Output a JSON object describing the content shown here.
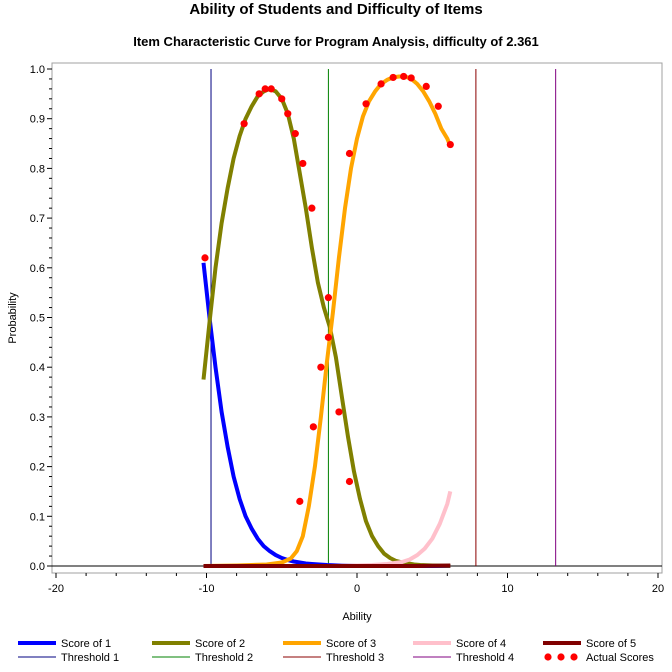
{
  "chart_data": {
    "type": "line",
    "title": "Ability of Students and Difficulty of Items",
    "subtitle": "Item Characteristic Curve for Program Analysis, difficulty of 2.361",
    "xlabel": "Ability",
    "ylabel": "Probability",
    "xlim": [
      -20,
      20
    ],
    "ylim": [
      0,
      1
    ],
    "xticks": [
      -20,
      -10,
      0,
      10,
      20
    ],
    "yticks": [
      0.0,
      0.1,
      0.2,
      0.3,
      0.4,
      0.5,
      0.6,
      0.7,
      0.8,
      0.9,
      1.0
    ],
    "ytick_labels": [
      "0.0",
      "0.1",
      "0.2",
      "0.3",
      "0.4",
      "0.5",
      "0.6",
      "0.7",
      "0.8",
      "0.9",
      "1.0"
    ],
    "grid": false,
    "legend_position": "bottom",
    "series": [
      {
        "name": "Score of 1",
        "color": "#0000ff",
        "x": [
          -10.2,
          -9.8,
          -9.4,
          -9.0,
          -8.6,
          -8.2,
          -7.8,
          -7.4,
          -7.0,
          -6.6,
          -6.2,
          -5.8,
          -5.4,
          -5.0,
          -4.6,
          -4.2,
          -3.8,
          -3.4,
          -3.0,
          -2.0,
          -1.0,
          0.0,
          2.0,
          4.0,
          6.2
        ],
        "y": [
          0.61,
          0.5,
          0.4,
          0.31,
          0.24,
          0.18,
          0.135,
          0.1,
          0.075,
          0.055,
          0.04,
          0.03,
          0.022,
          0.016,
          0.012,
          0.009,
          0.007,
          0.005,
          0.004,
          0.002,
          0.001,
          0.0005,
          0.0002,
          0.0001,
          0.0
        ]
      },
      {
        "name": "Score of 2",
        "color": "#808000",
        "x": [
          -10.2,
          -9.8,
          -9.4,
          -9.0,
          -8.6,
          -8.2,
          -7.8,
          -7.4,
          -7.0,
          -6.6,
          -6.2,
          -5.8,
          -5.4,
          -5.0,
          -4.6,
          -4.2,
          -3.8,
          -3.4,
          -3.0,
          -2.6,
          -2.2,
          -1.8,
          -1.4,
          -1.0,
          -0.6,
          -0.2,
          0.2,
          0.6,
          1.0,
          1.4,
          1.8,
          2.2,
          2.6,
          3.0,
          3.4,
          3.8,
          4.2,
          4.6,
          5.0,
          5.4,
          5.8,
          6.2
        ],
        "y": [
          0.375,
          0.49,
          0.6,
          0.69,
          0.76,
          0.82,
          0.865,
          0.9,
          0.925,
          0.945,
          0.955,
          0.96,
          0.955,
          0.94,
          0.91,
          0.86,
          0.79,
          0.72,
          0.64,
          0.57,
          0.52,
          0.48,
          0.42,
          0.34,
          0.26,
          0.19,
          0.135,
          0.09,
          0.06,
          0.04,
          0.025,
          0.016,
          0.01,
          0.007,
          0.005,
          0.003,
          0.002,
          0.0015,
          0.001,
          0.0008,
          0.0005,
          0.0003
        ]
      },
      {
        "name": "Score of 3",
        "color": "#ffa500",
        "x": [
          -10.2,
          -8.0,
          -6.0,
          -5.0,
          -4.4,
          -4.0,
          -3.6,
          -3.2,
          -2.8,
          -2.4,
          -2.0,
          -1.6,
          -1.2,
          -0.8,
          -0.4,
          0.0,
          0.4,
          0.8,
          1.2,
          1.6,
          2.0,
          2.4,
          2.8,
          3.2,
          3.6,
          4.0,
          4.4,
          4.8,
          5.2,
          5.6,
          6.0,
          6.2
        ],
        "y": [
          0.0,
          0.001,
          0.003,
          0.007,
          0.015,
          0.03,
          0.06,
          0.12,
          0.2,
          0.3,
          0.41,
          0.51,
          0.62,
          0.72,
          0.8,
          0.86,
          0.905,
          0.935,
          0.955,
          0.97,
          0.978,
          0.983,
          0.985,
          0.985,
          0.98,
          0.97,
          0.955,
          0.935,
          0.91,
          0.88,
          0.86,
          0.845
        ]
      },
      {
        "name": "Score of 4",
        "color": "#ffc0cb",
        "x": [
          -10.2,
          -2.0,
          0.0,
          1.0,
          2.0,
          3.0,
          3.5,
          4.0,
          4.5,
          5.0,
          5.5,
          6.0,
          6.2
        ],
        "y": [
          0.0,
          0.0,
          0.001,
          0.002,
          0.004,
          0.008,
          0.013,
          0.022,
          0.035,
          0.055,
          0.085,
          0.125,
          0.15
        ]
      },
      {
        "name": "Score of 5",
        "color": "#800000",
        "x": [
          -10.2,
          -4.0,
          0.0,
          4.0,
          6.2
        ],
        "y": [
          0.0,
          0.0,
          0.0,
          0.0,
          0.001
        ]
      }
    ],
    "thresholds": [
      {
        "name": "Threshold 1",
        "x": -9.7,
        "color": "#000080"
      },
      {
        "name": "Threshold 2",
        "x": -1.9,
        "color": "#008000"
      },
      {
        "name": "Threshold 3",
        "x": 7.9,
        "color": "#8b0000"
      },
      {
        "name": "Threshold 4",
        "x": 13.2,
        "color": "#800080"
      }
    ],
    "actual_scores": {
      "name": "Actual Scores",
      "color": "#ff0000",
      "points": [
        [
          -10.1,
          0.62
        ],
        [
          -7.5,
          0.89
        ],
        [
          -6.5,
          0.95
        ],
        [
          -6.1,
          0.96
        ],
        [
          -5.7,
          0.96
        ],
        [
          -5.0,
          0.94
        ],
        [
          -4.6,
          0.91
        ],
        [
          -4.1,
          0.87
        ],
        [
          -3.8,
          0.13
        ],
        [
          -3.6,
          0.81
        ],
        [
          -3.0,
          0.72
        ],
        [
          -2.9,
          0.28
        ],
        [
          -2.4,
          0.4
        ],
        [
          -1.9,
          0.54
        ],
        [
          -1.9,
          0.46
        ],
        [
          -1.2,
          0.31
        ],
        [
          -0.5,
          0.17
        ],
        [
          -0.5,
          0.83
        ],
        [
          0.6,
          0.93
        ],
        [
          1.6,
          0.97
        ],
        [
          2.4,
          0.983
        ],
        [
          3.1,
          0.985
        ],
        [
          3.6,
          0.982
        ],
        [
          4.6,
          0.965
        ],
        [
          5.4,
          0.925
        ],
        [
          6.2,
          0.848
        ]
      ]
    }
  },
  "legend": {
    "row1": [
      "Score of 1",
      "Score of 2",
      "Score of 3",
      "Score of 4",
      "Score of 5"
    ],
    "row2": [
      "Threshold 1",
      "Threshold 2",
      "Threshold 3",
      "Threshold 4",
      "Actual Scores"
    ]
  }
}
